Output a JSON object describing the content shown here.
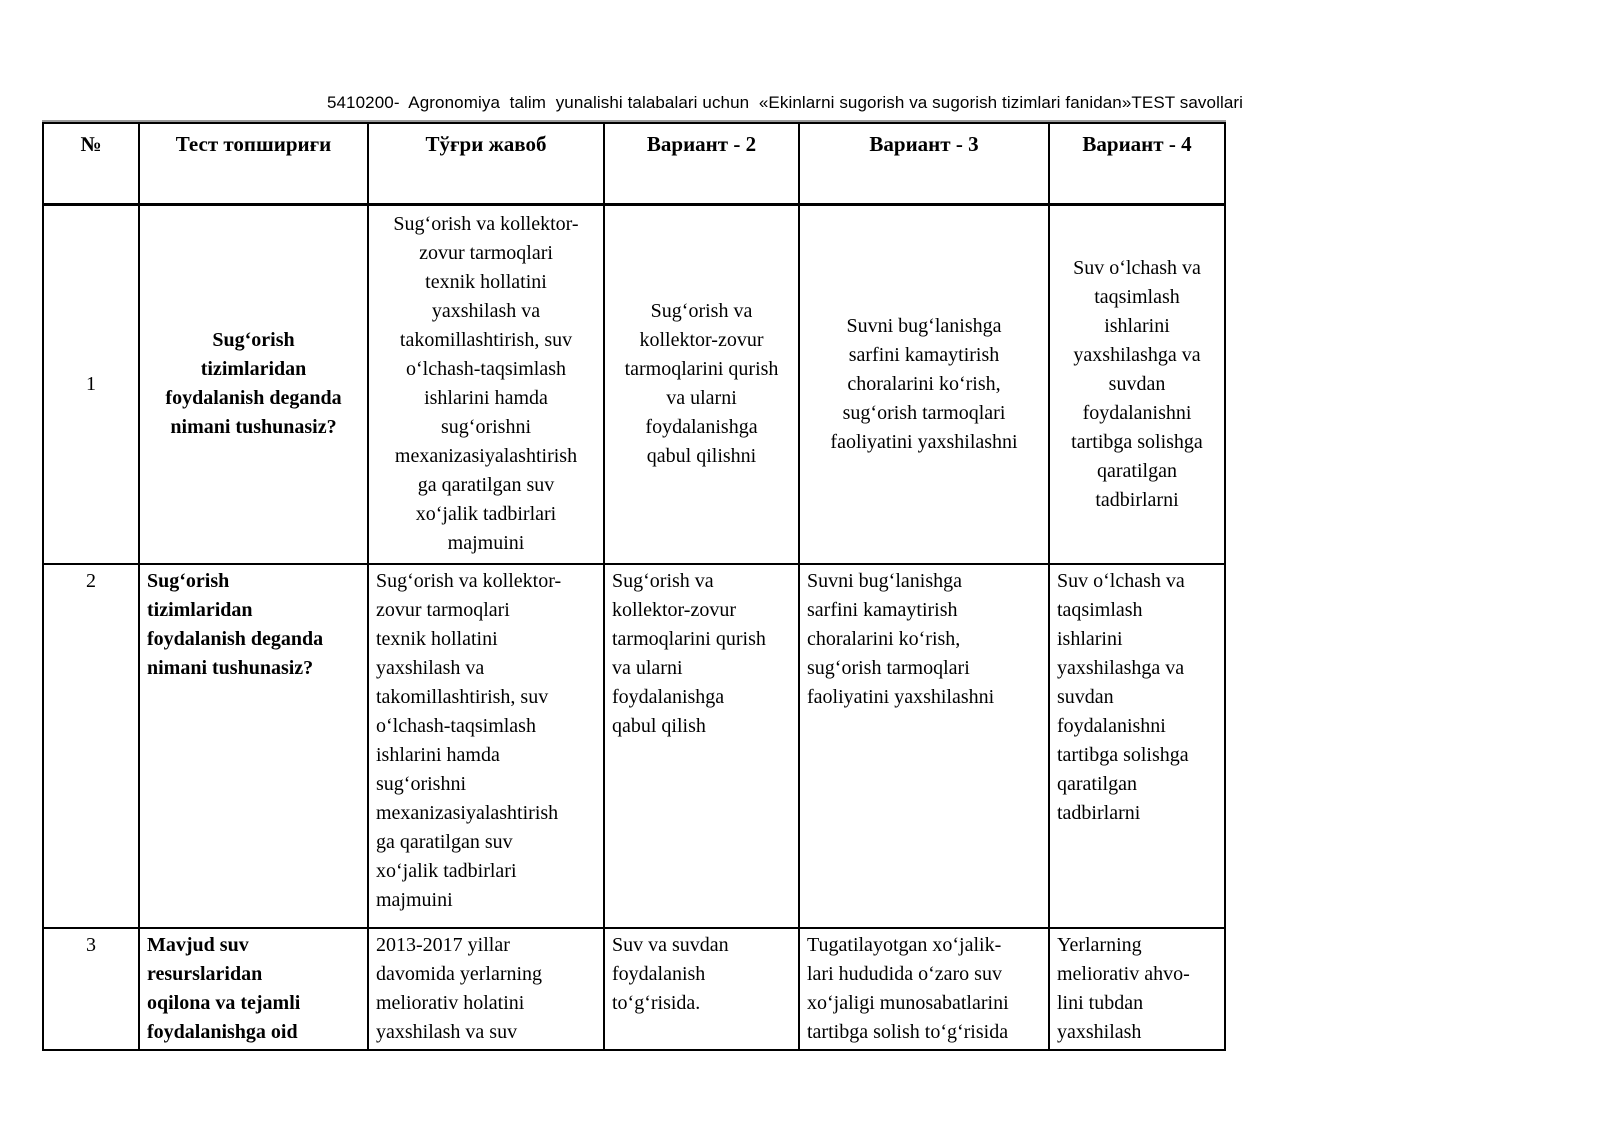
{
  "title": "5410200-  Agronomiya  talim  yunalishi talabalari uchun  «Ekinlarni sugorish va sugorish tizimlari fanidan»TEST savollari",
  "table": {
    "headers": {
      "num": "№",
      "task": "Тест топшириғи",
      "correct": "Тўғри жавоб",
      "variant2": "Вариант - 2",
      "variant3": "Вариант - 3",
      "variant4": "Вариант - 4"
    },
    "rows": [
      {
        "num": "1",
        "question": "Sug‘orish\ntizimlaridan\nfoydalanish deganda\nnimani tushunasiz?",
        "correct": "Sug‘orish va kollektor-\nzovur tarmoqlari\ntexnik hollatini\nyaxshilash va\ntakomillashtirish, suv\no‘lchash-taqsimlash\nishlarini hamda\nsug‘orishni\nmexanizasiyalashtirish\nga qaratilgan suv\nxo‘jalik tadbirlari\nmajmuini",
        "variant2": "Sug‘orish va\nkollektor-zovur\ntarmoqlarini qurish\nva ularni\nfoydalanishga\nqabul qilishni",
        "variant3": "Suvni bug‘lanishga\nsarfini kamaytirish\nchoralarini ko‘rish,\nsug‘orish tarmoqlari\nfaoliyatini yaxshilashni",
        "variant4": "Suv o‘lchash va\ntaqsimlash\nishlarini\nyaxshilashga va\nsuvdan\nfoydalanishni\ntartibga solishga\nqaratilgan\ntadbirlarni"
      },
      {
        "num": "2",
        "question": "Sug‘orish\ntizimlaridan\nfoydalanish deganda\nnimani tushunasiz?",
        "correct": "Sug‘orish va kollektor-\nzovur tarmoqlari\ntexnik hollatini\nyaxshilash va\ntakomillashtirish, suv\no‘lchash-taqsimlash\nishlarini hamda\nsug‘orishni\nmexanizasiyalashtirish\nga qaratilgan suv\nxo‘jalik tadbirlari\nmajmuini",
        "variant2": "Sug‘orish va\nkollektor-zovur\ntarmoqlarini qurish\nva ularni\nfoydalanishga\nqabul qilish",
        "variant3": "Suvni bug‘lanishga\nsarfini kamaytirish\nchoralarini ko‘rish,\nsug‘orish tarmoqlari\nfaoliyatini yaxshilashni",
        "variant4": "Suv o‘lchash va\ntaqsimlash\nishlarini\nyaxshilashga va\nsuvdan\nfoydalanishni\ntartibga solishga\nqaratilgan\ntadbirlarni"
      },
      {
        "num": "3",
        "question": "Mavjud suv\nresurslaridan\noqilona va tejamli\nfoydalanishga oid",
        "correct": "2013-2017 yillar\ndavomida yerlarning\nmeliorativ holatini\nyaxshilash va suv",
        "variant2": "Suv va suvdan\nfoydalanish\nto‘g‘risida.",
        "variant3": "Tugatilayotgan xo‘jalik-\nlari hududida o‘zaro suv\nxo‘jaligi munosabatlarini\ntartibga solish to‘g‘risida",
        "variant4": "Yerlarning\nmeliorativ ahvo-\nlini tubdan\nyaxshilash"
      }
    ]
  }
}
